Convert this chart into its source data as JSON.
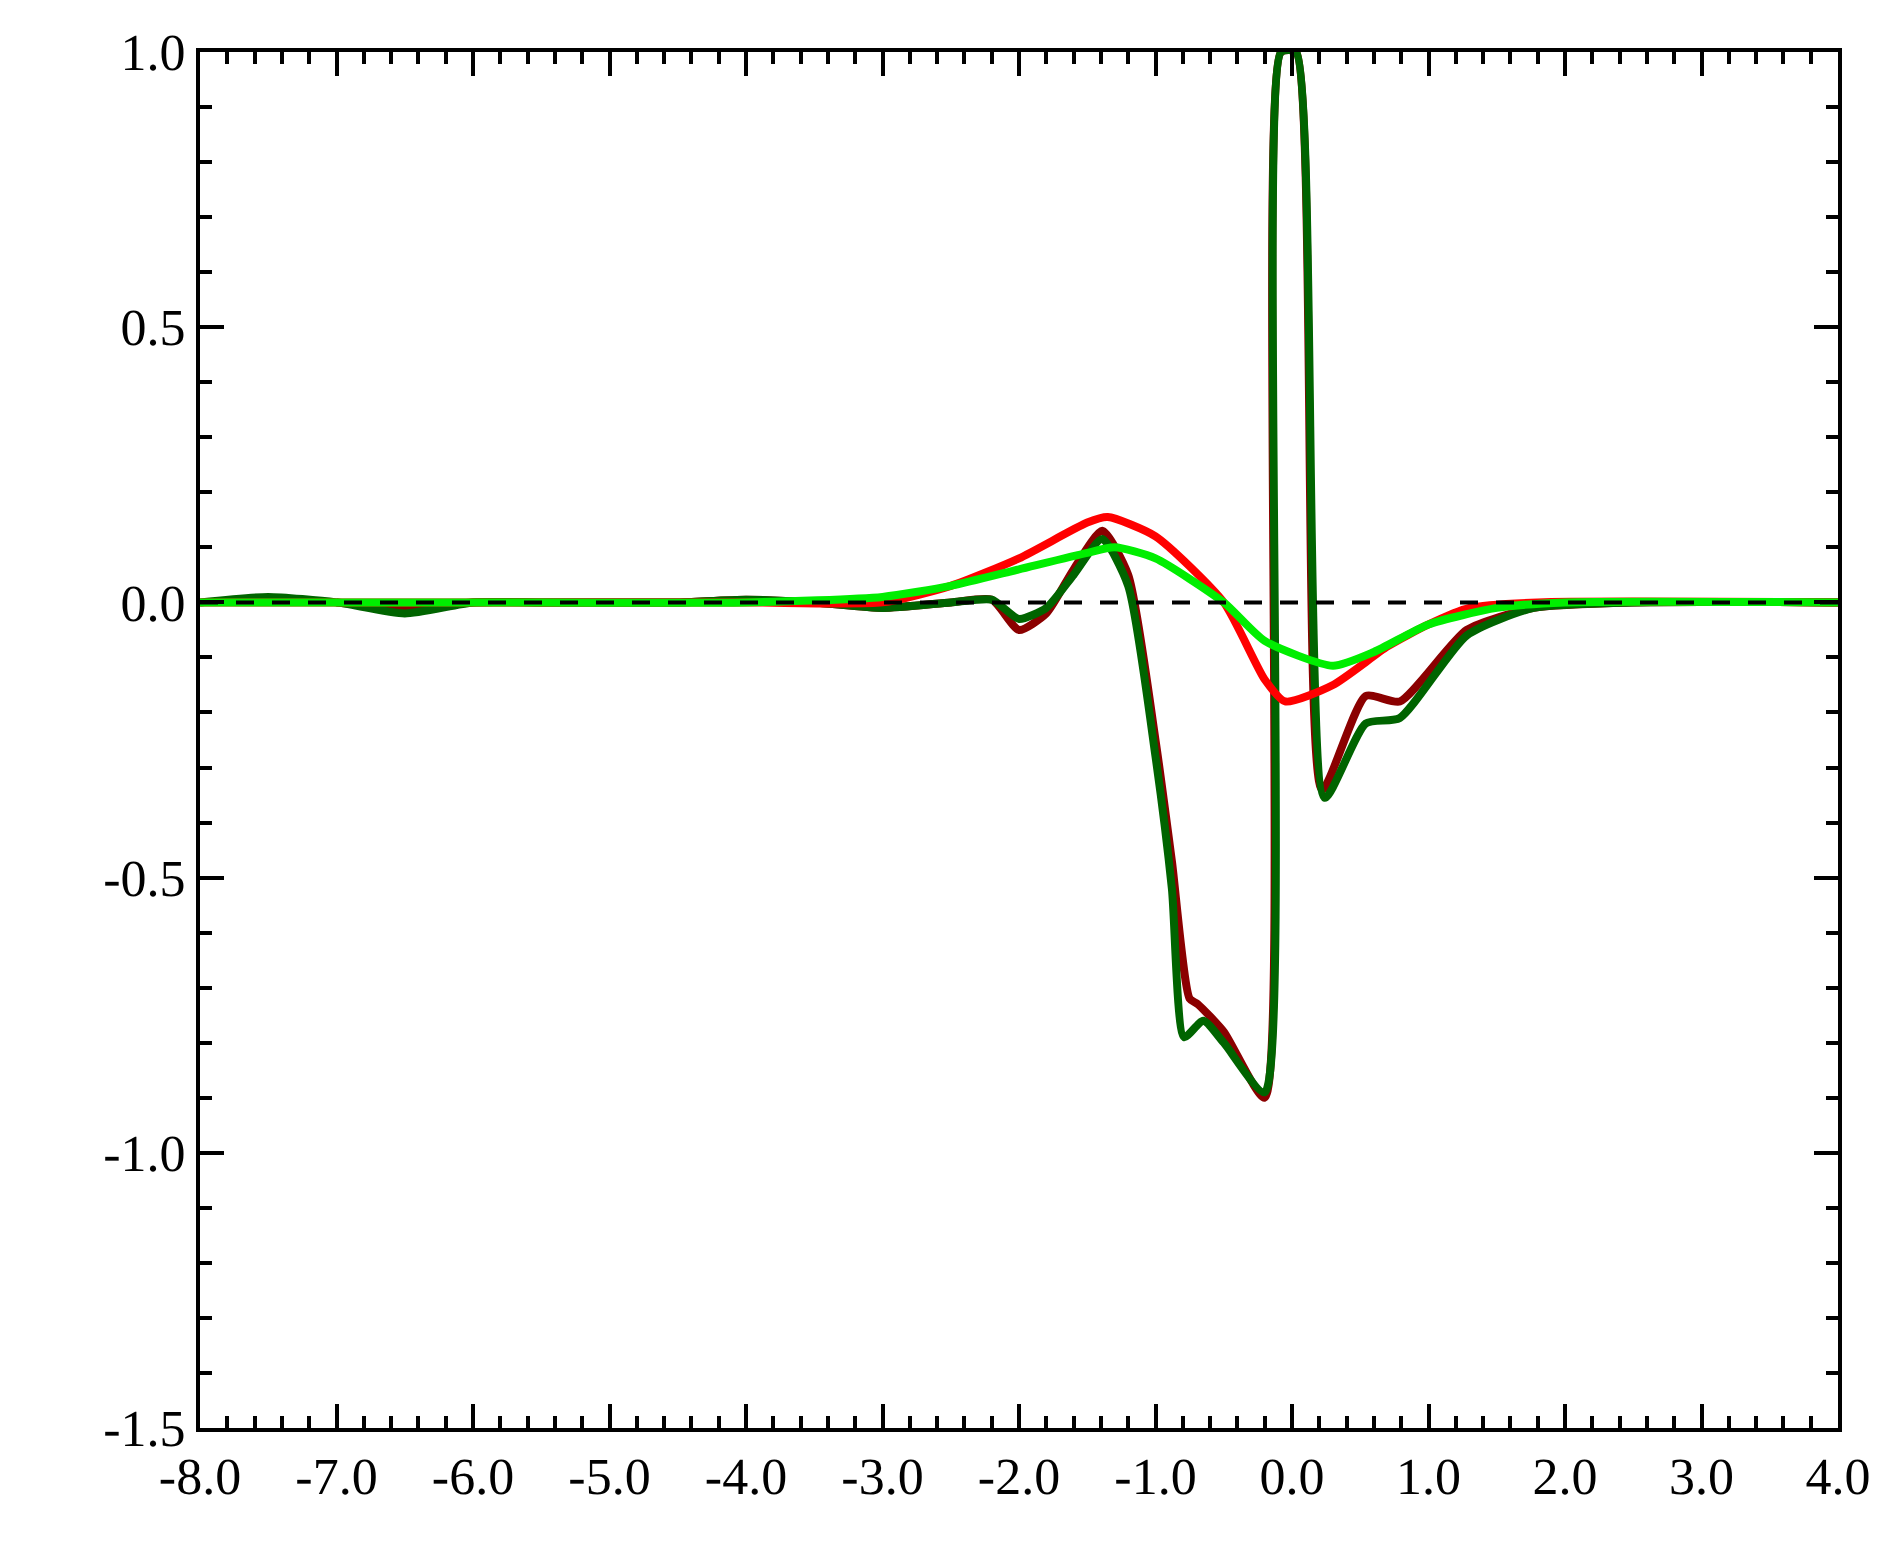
{
  "chart_data": {
    "type": "line",
    "xlim": [
      -8,
      4
    ],
    "ylim": [
      -1.5,
      1.0
    ],
    "xticks": [
      {
        "value": -8,
        "label": "-8.0"
      },
      {
        "value": -7,
        "label": "-7.0"
      },
      {
        "value": -6,
        "label": "-6.0"
      },
      {
        "value": -5,
        "label": "-5.0"
      },
      {
        "value": -4,
        "label": "-4.0"
      },
      {
        "value": -3,
        "label": "-3.0"
      },
      {
        "value": -2,
        "label": "-2.0"
      },
      {
        "value": -1,
        "label": "-1.0"
      },
      {
        "value": 0,
        "label": "0.0"
      },
      {
        "value": 1,
        "label": "1.0"
      },
      {
        "value": 2,
        "label": "2.0"
      },
      {
        "value": 3,
        "label": "3.0"
      },
      {
        "value": 4,
        "label": "4.0"
      }
    ],
    "yticks": [
      {
        "value": -1.5,
        "label": "-1.5"
      },
      {
        "value": -1,
        "label": "-1.0"
      },
      {
        "value": -0.5,
        "label": "-0.5"
      },
      {
        "value": 0,
        "label": "0.0"
      },
      {
        "value": 0.5,
        "label": "0.5"
      },
      {
        "value": 1,
        "label": "1.0"
      }
    ],
    "legend": false,
    "marker": "none",
    "line_style": "solid",
    "ref_lines": [
      {
        "axis": "y",
        "value": 0,
        "color": "#000000",
        "line_style": "dashed"
      }
    ],
    "series": [
      {
        "color": "#8b0000",
        "x": [
          -7,
          -6.5,
          -6,
          -5.5,
          -5,
          -4.5,
          -4,
          -3.5,
          -3,
          -2.5,
          -2.2,
          -2.0,
          -1.8,
          -1.6,
          -1.39,
          -1.2,
          -1.0,
          -0.88,
          -0.75,
          -0.69,
          -0.5,
          -0.2,
          -0.08,
          0.03,
          0.22,
          0.54,
          0.79,
          1.28,
          1.77,
          2.5,
          4
        ],
        "values": [
          0,
          -0.01,
          0,
          0,
          0,
          0,
          0.005,
          0,
          -0.01,
          0,
          0.005,
          -0.05,
          -0.02,
          0.06,
          0.13,
          0.05,
          -0.25,
          -0.47,
          -0.72,
          -0.73,
          -0.78,
          -0.9,
          1.0,
          1.0,
          -0.34,
          -0.17,
          -0.18,
          -0.05,
          -0.01,
          0,
          0
        ]
      },
      {
        "color": "#006400",
        "x": [
          -8,
          -7.5,
          -7,
          -6.5,
          -6,
          -5.5,
          -5,
          -4.5,
          -4,
          -3.5,
          -3,
          -2.5,
          -2.2,
          -2.0,
          -1.8,
          -1.6,
          -1.39,
          -1.2,
          -1.0,
          -0.88,
          -0.79,
          -0.65,
          -0.5,
          -0.2,
          -0.08,
          0.03,
          0.24,
          0.54,
          0.79,
          1.28,
          1.77,
          2.5,
          4
        ],
        "values": [
          0,
          0.01,
          0,
          -0.02,
          0,
          0,
          0,
          0,
          0.005,
          0,
          -0.01,
          0,
          0.005,
          -0.03,
          -0.01,
          0.05,
          0.115,
          0.03,
          -0.28,
          -0.52,
          -0.79,
          -0.76,
          -0.8,
          -0.89,
          1.0,
          1.0,
          -0.355,
          -0.22,
          -0.21,
          -0.06,
          -0.01,
          0,
          0
        ]
      },
      {
        "color": "#ff0000",
        "x": [
          -8,
          -6,
          -4,
          -3,
          -2.5,
          -2,
          -1.5,
          -1.35,
          -1,
          -0.5,
          -0.2,
          -0.05,
          0.3,
          0.7,
          1.0,
          1.3,
          1.8,
          4
        ],
        "values": [
          0,
          0,
          0,
          0,
          0.03,
          0.08,
          0.145,
          0.155,
          0.12,
          0.0,
          -0.14,
          -0.18,
          -0.15,
          -0.08,
          -0.04,
          -0.01,
          0,
          0
        ]
      },
      {
        "color": "#00ee00",
        "x": [
          -8,
          -6,
          -4,
          -3,
          -2.5,
          -2,
          -1.5,
          -1.3,
          -1.0,
          -0.5,
          -0.2,
          0.3,
          0.6,
          1.0,
          1.5,
          2,
          4
        ],
        "values": [
          0,
          0,
          0,
          0.01,
          0.03,
          0.06,
          0.09,
          0.1,
          0.08,
          0.0,
          -0.07,
          -0.115,
          -0.09,
          -0.04,
          -0.01,
          0,
          0
        ]
      }
    ]
  }
}
